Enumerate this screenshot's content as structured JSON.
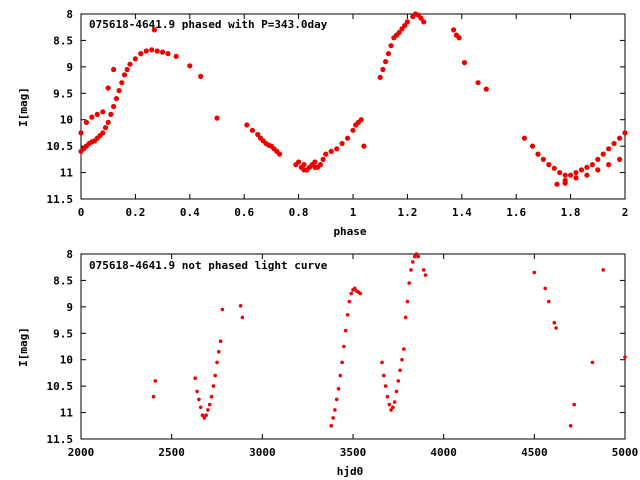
{
  "chart_data": [
    {
      "type": "scatter",
      "title": "075618-4641.9 phased with P=343.0day",
      "xlabel": "phase",
      "ylabel": "I[mag]",
      "xlim": [
        0,
        2
      ],
      "ylim": [
        11.5,
        8
      ],
      "y_inverted": true,
      "xticks": [
        "0",
        "0.2",
        "0.4",
        "0.6",
        "0.8",
        "1",
        "1.2",
        "1.4",
        "1.6",
        "1.8",
        "2"
      ],
      "yticks": [
        "8",
        "8.5",
        "9",
        "9.5",
        "10",
        "10.5",
        "11",
        "11.5"
      ],
      "grid": false,
      "marker_color": "#ee0000",
      "series": [
        {
          "x": [
            0.0,
            0.0,
            0.01,
            0.02,
            0.03,
            0.04,
            0.05,
            0.06,
            0.07,
            0.08,
            0.09,
            0.1,
            0.11,
            0.12,
            0.13,
            0.14,
            0.15,
            0.16,
            0.17,
            0.18,
            0.2,
            0.22,
            0.24,
            0.26,
            0.28,
            0.3,
            0.32,
            0.35,
            0.04,
            0.06,
            0.08,
            0.1,
            0.12,
            0.02,
            0.27,
            0.4,
            0.44,
            0.5,
            0.61,
            0.63,
            0.65,
            0.66,
            0.67,
            0.68,
            0.69,
            0.7,
            0.71,
            0.72,
            0.73,
            0.79,
            0.8,
            0.81,
            0.82,
            0.83,
            0.84,
            0.85,
            0.86,
            0.87,
            0.88,
            0.89,
            0.9,
            0.92,
            0.94,
            0.96,
            0.98,
            1.0,
            1.01,
            1.02,
            1.03,
            1.04,
            1.1,
            1.11,
            1.12,
            1.13,
            1.14,
            1.15,
            1.16,
            1.17,
            1.18,
            1.19,
            1.2,
            1.22,
            1.23,
            1.24,
            1.25,
            1.26,
            1.37,
            1.38,
            1.39,
            1.41,
            1.46,
            1.49,
            1.63,
            1.66,
            1.68,
            1.7,
            1.72,
            1.74,
            1.76,
            1.78,
            1.8,
            1.82,
            1.84,
            1.86,
            1.88,
            1.9,
            1.92,
            1.94,
            1.96,
            1.98,
            2.0,
            1.75,
            1.78,
            1.82,
            1.86,
            1.9,
            1.94,
            1.98,
            1.78,
            0.82,
            0.86
          ],
          "y": [
            10.25,
            10.6,
            10.55,
            10.5,
            10.45,
            10.42,
            10.4,
            10.35,
            10.3,
            10.25,
            10.15,
            10.05,
            9.9,
            9.75,
            9.6,
            9.45,
            9.3,
            9.15,
            9.05,
            8.95,
            8.85,
            8.75,
            8.7,
            8.68,
            8.7,
            8.72,
            8.75,
            8.8,
            9.95,
            9.9,
            9.85,
            9.4,
            9.05,
            10.05,
            8.3,
            8.98,
            9.18,
            9.97,
            10.1,
            10.2,
            10.28,
            10.35,
            10.4,
            10.45,
            10.48,
            10.5,
            10.55,
            10.6,
            10.65,
            10.85,
            10.8,
            10.9,
            10.85,
            10.95,
            10.9,
            10.85,
            10.8,
            10.9,
            10.85,
            10.75,
            10.65,
            10.6,
            10.55,
            10.45,
            10.35,
            10.2,
            10.1,
            10.05,
            10.0,
            10.5,
            9.2,
            9.05,
            8.9,
            8.75,
            8.6,
            8.45,
            8.4,
            8.35,
            8.28,
            8.22,
            8.15,
            8.05,
            8.0,
            8.02,
            8.08,
            8.15,
            8.3,
            8.4,
            8.45,
            8.92,
            9.3,
            9.42,
            10.35,
            10.5,
            10.65,
            10.75,
            10.85,
            10.92,
            11.0,
            11.05,
            11.05,
            11.0,
            10.95,
            10.9,
            10.85,
            10.75,
            10.65,
            10.55,
            10.45,
            10.35,
            10.25,
            11.22,
            11.15,
            11.1,
            11.05,
            10.95,
            10.85,
            10.75,
            11.2,
            10.95,
            10.9
          ]
        }
      ]
    },
    {
      "type": "scatter",
      "title": "075618-4641.9 not phased light curve",
      "xlabel": "hjd0",
      "ylabel": "I[mag]",
      "xlim": [
        2000,
        5000
      ],
      "ylim": [
        11.5,
        8
      ],
      "y_inverted": true,
      "xticks": [
        "2000",
        "2500",
        "3000",
        "3500",
        "4000",
        "4500",
        "5000"
      ],
      "yticks": [
        "8",
        "8.5",
        "9",
        "9.5",
        "10",
        "10.5",
        "11",
        "11.5"
      ],
      "grid": false,
      "marker_color": "#ee0000",
      "series": [
        {
          "x": [
            2400,
            2410,
            2630,
            2640,
            2650,
            2660,
            2670,
            2680,
            2690,
            2700,
            2710,
            2720,
            2730,
            2740,
            2750,
            2760,
            2770,
            2780,
            2880,
            2890,
            3380,
            3390,
            3400,
            3410,
            3420,
            3430,
            3440,
            3450,
            3460,
            3470,
            3480,
            3490,
            3500,
            3510,
            3520,
            3530,
            3540,
            3660,
            3670,
            3680,
            3690,
            3700,
            3710,
            3720,
            3730,
            3740,
            3750,
            3760,
            3770,
            3780,
            3790,
            3800,
            3810,
            3820,
            3830,
            3840,
            3850,
            3860,
            3890,
            3900,
            4500,
            4560,
            4580,
            4610,
            4620,
            4700,
            4720,
            4820,
            4880,
            5000
          ],
          "y": [
            10.7,
            10.4,
            10.35,
            10.6,
            10.75,
            10.9,
            11.05,
            11.1,
            11.05,
            10.95,
            10.85,
            10.7,
            10.5,
            10.3,
            10.05,
            9.85,
            9.65,
            9.05,
            8.98,
            9.2,
            11.25,
            11.1,
            10.95,
            10.75,
            10.55,
            10.3,
            10.05,
            9.75,
            9.45,
            9.15,
            8.9,
            8.75,
            8.68,
            8.65,
            8.7,
            8.72,
            8.75,
            10.05,
            10.3,
            10.5,
            10.7,
            10.85,
            10.95,
            10.9,
            10.8,
            10.6,
            10.4,
            10.2,
            10.0,
            9.8,
            9.2,
            8.9,
            8.55,
            8.3,
            8.15,
            8.05,
            8.0,
            8.05,
            8.3,
            8.4,
            8.35,
            8.65,
            8.9,
            9.3,
            9.4,
            11.25,
            10.85,
            10.05,
            8.3,
            9.95
          ]
        }
      ]
    }
  ]
}
